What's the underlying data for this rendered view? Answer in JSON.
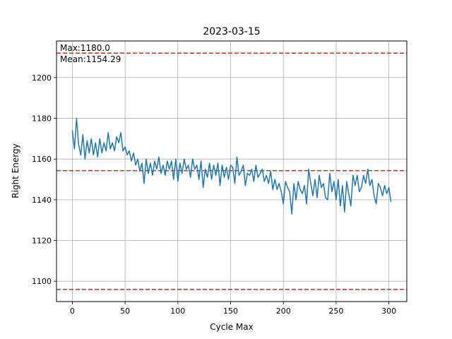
{
  "chart_data": {
    "type": "line",
    "title": "2023-03-15",
    "xlabel": "Cycle Max",
    "ylabel": "Right Energy",
    "xlim": [
      -15,
      317
    ],
    "ylim": [
      1090,
      1218
    ],
    "xticks": [
      0,
      50,
      100,
      150,
      200,
      250,
      300
    ],
    "yticks": [
      1100,
      1120,
      1140,
      1160,
      1180,
      1200
    ],
    "grid": true,
    "annotations": [
      "Max:1180.0",
      "Mean:1154.29"
    ],
    "reference_lines": [
      {
        "y": 1212,
        "color": "#d62728",
        "style": "dashed"
      },
      {
        "y": 1154.29,
        "color": "#d62728",
        "style": "dashed"
      },
      {
        "y": 1096,
        "color": "#d62728",
        "style": "dashed"
      }
    ],
    "series_color": "#1f77b4",
    "x": [
      0,
      2,
      4,
      6,
      8,
      10,
      12,
      14,
      16,
      18,
      20,
      22,
      24,
      26,
      28,
      30,
      32,
      34,
      36,
      38,
      40,
      42,
      44,
      46,
      48,
      50,
      52,
      54,
      56,
      58,
      60,
      62,
      64,
      66,
      68,
      70,
      72,
      74,
      76,
      78,
      80,
      82,
      84,
      86,
      88,
      90,
      92,
      94,
      96,
      98,
      100,
      102,
      104,
      106,
      108,
      110,
      112,
      114,
      116,
      118,
      120,
      122,
      124,
      126,
      128,
      130,
      132,
      134,
      136,
      138,
      140,
      142,
      144,
      146,
      148,
      150,
      152,
      154,
      156,
      158,
      160,
      162,
      164,
      166,
      168,
      170,
      172,
      174,
      176,
      178,
      180,
      182,
      184,
      186,
      188,
      190,
      192,
      194,
      196,
      198,
      200,
      202,
      204,
      206,
      208,
      210,
      212,
      214,
      216,
      218,
      220,
      222,
      224,
      226,
      228,
      230,
      232,
      234,
      236,
      238,
      240,
      242,
      244,
      246,
      248,
      250,
      252,
      254,
      256,
      258,
      260,
      262,
      264,
      266,
      268,
      270,
      272,
      274,
      276,
      278,
      280,
      282,
      284,
      286,
      288,
      290,
      292,
      294,
      296,
      298,
      300,
      302
    ],
    "y": [
      1174,
      1165,
      1180,
      1167,
      1162,
      1172,
      1160,
      1169,
      1163,
      1170,
      1162,
      1168,
      1161,
      1170,
      1163,
      1168,
      1164,
      1173,
      1165,
      1168,
      1164,
      1171,
      1168,
      1173,
      1164,
      1166,
      1162,
      1164,
      1159,
      1163,
      1157,
      1160,
      1154,
      1158,
      1148,
      1160,
      1153,
      1158,
      1152,
      1159,
      1155,
      1161,
      1153,
      1157,
      1152,
      1159,
      1155,
      1159,
      1150,
      1160,
      1149,
      1158,
      1153,
      1160,
      1155,
      1157,
      1151,
      1160,
      1155,
      1157,
      1150,
      1159,
      1146,
      1155,
      1151,
      1158,
      1150,
      1157,
      1152,
      1158,
      1147,
      1157,
      1151,
      1156,
      1150,
      1157,
      1156,
      1148,
      1161,
      1152,
      1154,
      1157,
      1147,
      1153,
      1152,
      1155,
      1149,
      1157,
      1151,
      1153,
      1155,
      1149,
      1152,
      1148,
      1154,
      1145,
      1150,
      1145,
      1148,
      1144,
      1138,
      1149,
      1146,
      1144,
      1133,
      1148,
      1140,
      1149,
      1145,
      1143,
      1147,
      1138,
      1155,
      1148,
      1142,
      1150,
      1141,
      1152,
      1146,
      1148,
      1141,
      1140,
      1153,
      1144,
      1149,
      1140,
      1150,
      1137,
      1147,
      1134,
      1149,
      1143,
      1137,
      1152,
      1147,
      1152,
      1144,
      1146,
      1152,
      1148,
      1155,
      1147,
      1150,
      1142,
      1138,
      1148,
      1146,
      1142,
      1147,
      1143,
      1146,
      1139
    ]
  }
}
